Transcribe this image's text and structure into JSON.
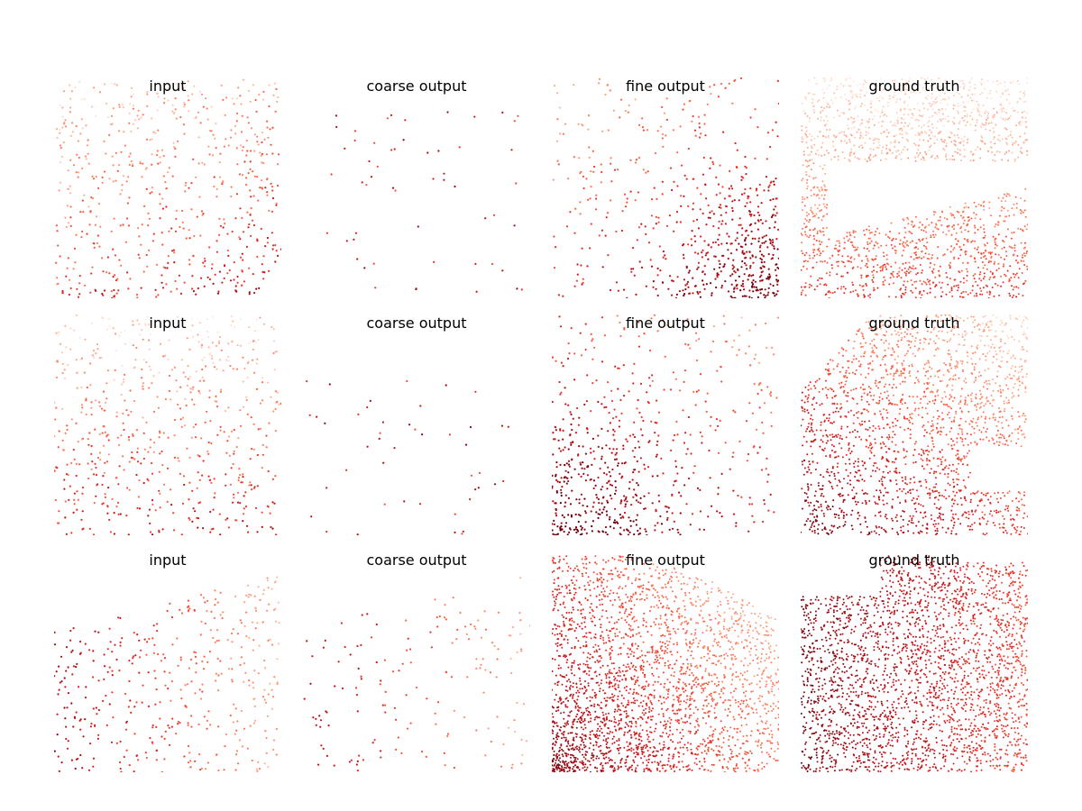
{
  "figure": {
    "colormap": "Reds",
    "colormap_low": "#fff5f0",
    "colormap_high": "#67000d",
    "background": "#ffffff"
  },
  "chart_data": [
    {
      "type": "scatter",
      "title": "input",
      "row": 0,
      "col": 0,
      "points": 620,
      "pattern": "uniform",
      "density": 1.0,
      "tone": "light-top-dark-bottom-right",
      "axes": "off"
    },
    {
      "type": "scatter",
      "title": "coarse output",
      "row": 0,
      "col": 1,
      "points": 55,
      "pattern": "sparse-center",
      "density": 0.2,
      "tone": "dark",
      "axes": "off"
    },
    {
      "type": "scatter",
      "title": "fine output",
      "row": 0,
      "col": 2,
      "points": 650,
      "pattern": "dense-bottom-right",
      "density": 1.0,
      "tone": "dark-bottom-right",
      "axes": "off"
    },
    {
      "type": "scatter",
      "title": "ground truth",
      "row": 0,
      "col": 3,
      "points": 1800,
      "pattern": "folded-surface",
      "density": 1.0,
      "tone": "light-top-red-bottom",
      "axes": "off"
    },
    {
      "type": "scatter",
      "title": "input",
      "row": 1,
      "col": 0,
      "points": 620,
      "pattern": "uniform",
      "density": 1.0,
      "tone": "light-top-dark-bottom",
      "axes": "off"
    },
    {
      "type": "scatter",
      "title": "coarse output",
      "row": 1,
      "col": 1,
      "points": 45,
      "pattern": "sparse-left",
      "density": 0.2,
      "tone": "dark",
      "axes": "off"
    },
    {
      "type": "scatter",
      "title": "fine output",
      "row": 1,
      "col": 2,
      "points": 650,
      "pattern": "dense-bottom-left",
      "density": 1.0,
      "tone": "dark-bottom-left",
      "axes": "off"
    },
    {
      "type": "scatter",
      "title": "ground truth",
      "row": 1,
      "col": 3,
      "points": 1900,
      "pattern": "box-surface",
      "density": 1.0,
      "tone": "red-left-light-right",
      "axes": "off"
    },
    {
      "type": "scatter",
      "title": "input",
      "row": 2,
      "col": 0,
      "points": 420,
      "pattern": "band-diagonal",
      "density": 1.0,
      "tone": "dark-left-light-right",
      "axes": "off"
    },
    {
      "type": "scatter",
      "title": "coarse output",
      "row": 2,
      "col": 1,
      "points": 160,
      "pattern": "band-diagonal",
      "density": 0.5,
      "tone": "dark-left-light-right",
      "axes": "off"
    },
    {
      "type": "scatter",
      "title": "fine output",
      "row": 2,
      "col": 2,
      "points": 2600,
      "pattern": "radial-bottom-left",
      "density": 1.0,
      "tone": "very-dark-bottom-left",
      "axes": "off"
    },
    {
      "type": "scatter",
      "title": "ground truth",
      "row": 2,
      "col": 3,
      "points": 2600,
      "pattern": "stepped-surface",
      "density": 1.0,
      "tone": "dark-left-red-right",
      "axes": "off"
    }
  ]
}
